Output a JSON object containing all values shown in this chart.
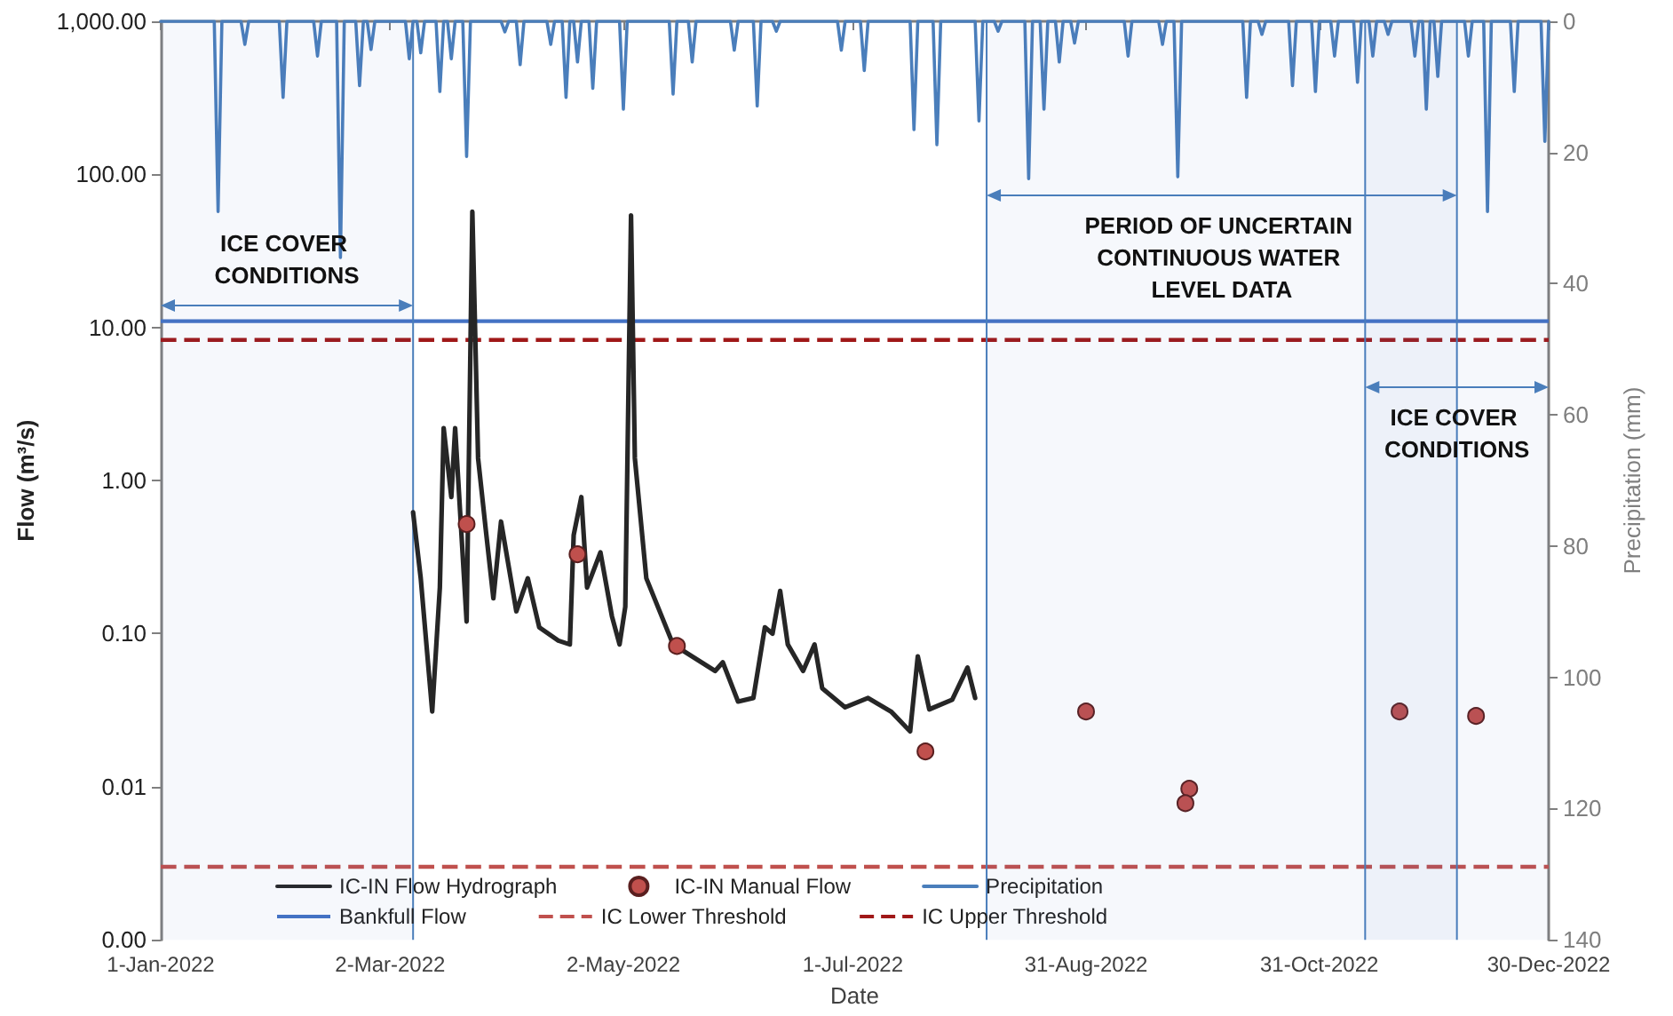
{
  "chart_data": {
    "type": "line",
    "xlabel": "Date",
    "ylabel": "Flow (m³/s)",
    "y2label": "Precipitation (mm)",
    "log": "y",
    "marker": "none",
    "legend": "bottom",
    "xlim": [
      "2022-01-01",
      "2022-12-30"
    ],
    "xticks": [
      {
        "value": "2022-01-01",
        "label": "1-Jan-2022"
      },
      {
        "value": "2022-03-02",
        "label": "2-Mar-2022"
      },
      {
        "value": "2022-05-02",
        "label": "2-May-2022"
      },
      {
        "value": "2022-07-01",
        "label": "1-Jul-2022"
      },
      {
        "value": "2022-08-31",
        "label": "31-Aug-2022"
      },
      {
        "value": "2022-10-31",
        "label": "31-Oct-2022"
      },
      {
        "value": "2022-12-30",
        "label": "30-Dec-2022"
      }
    ],
    "ylim": [
      0.001,
      1000
    ],
    "yticks": [
      {
        "value": 0.001,
        "label": "0.00"
      },
      {
        "value": 0.01,
        "label": "0.01"
      },
      {
        "value": 0.1,
        "label": "0.10"
      },
      {
        "value": 1,
        "label": "1.00"
      },
      {
        "value": 10,
        "label": "10.00"
      },
      {
        "value": 100,
        "label": "100.00"
      },
      {
        "value": 1000,
        "label": "1,000.00"
      }
    ],
    "y2lim": [
      140,
      0
    ],
    "y2ticks": [
      0,
      20,
      40,
      60,
      80,
      100,
      120,
      140
    ],
    "series": [
      {
        "name": "IC-IN Flow Hydrograph",
        "color": "#262626",
        "x": [
          "2022-03-08",
          "2022-03-10",
          "2022-03-13",
          "2022-03-15",
          "2022-03-16",
          "2022-03-18",
          "2022-03-19",
          "2022-03-22",
          "2022-03-23T12:00",
          "2022-03-25",
          "2022-03-27",
          "2022-03-29",
          "2022-03-31",
          "2022-04-04",
          "2022-04-07",
          "2022-04-10",
          "2022-04-15",
          "2022-04-18",
          "2022-04-19",
          "2022-04-21",
          "2022-04-22T12:00",
          "2022-04-26",
          "2022-04-29",
          "2022-05-01",
          "2022-05-02T12:00",
          "2022-05-04",
          "2022-05-05",
          "2022-05-08",
          "2022-05-15",
          "2022-05-26",
          "2022-05-28",
          "2022-06-01",
          "2022-06-05",
          "2022-06-08",
          "2022-06-10",
          "2022-06-12",
          "2022-06-14",
          "2022-06-18",
          "2022-06-21",
          "2022-06-23",
          "2022-06-29",
          "2022-07-05",
          "2022-07-11",
          "2022-07-16",
          "2022-07-18",
          "2022-07-21",
          "2022-07-27",
          "2022-07-31",
          "2022-08-02"
        ],
        "values": [
          0.62,
          0.23,
          0.031,
          0.2,
          2.2,
          0.78,
          2.2,
          0.12,
          57,
          1.4,
          0.48,
          0.17,
          0.54,
          0.14,
          0.23,
          0.11,
          0.09,
          0.085,
          0.44,
          0.78,
          0.2,
          0.34,
          0.13,
          0.085,
          0.15,
          54,
          1.4,
          0.23,
          0.085,
          0.057,
          0.065,
          0.036,
          0.038,
          0.11,
          0.1,
          0.19,
          0.085,
          0.057,
          0.085,
          0.044,
          0.033,
          0.038,
          0.031,
          0.023,
          0.071,
          0.032,
          0.037,
          0.06,
          0.038
        ]
      },
      {
        "name": "IC-IN Manual Flow",
        "type": "scatter",
        "marker": "circle",
        "color": "#c0504d",
        "x": [
          "2022-03-22",
          "2022-04-20",
          "2022-05-16",
          "2022-07-20",
          "2022-08-31",
          "2022-09-27",
          "2022-09-26",
          "2022-11-21",
          "2022-12-11"
        ],
        "values": [
          0.52,
          0.33,
          0.083,
          0.017,
          0.031,
          0.0097,
          0.0078,
          0.031,
          0.029
        ]
      },
      {
        "name": "Precipitation",
        "type": "line",
        "axis": "y2",
        "color": "#4a7ebb",
        "x": [
          "2022-01-01",
          "2022-01-15",
          "2022-01-16",
          "2022-01-17",
          "2022-01-22",
          "2022-01-23",
          "2022-01-24",
          "2022-02-01",
          "2022-02-02",
          "2022-02-03",
          "2022-02-10",
          "2022-02-11",
          "2022-02-12",
          "2022-02-16",
          "2022-02-17",
          "2022-02-18",
          "2022-02-21",
          "2022-02-22",
          "2022-02-23",
          "2022-02-24",
          "2022-02-25",
          "2022-02-26",
          "2022-03-06",
          "2022-03-07",
          "2022-03-08",
          "2022-03-09",
          "2022-03-10",
          "2022-03-11",
          "2022-03-14",
          "2022-03-15",
          "2022-03-16",
          "2022-03-17",
          "2022-03-18",
          "2022-03-19",
          "2022-03-21",
          "2022-03-22",
          "2022-03-23",
          "2022-03-31",
          "2022-04-01",
          "2022-04-02",
          "2022-04-04",
          "2022-04-05",
          "2022-04-06",
          "2022-04-12",
          "2022-04-13",
          "2022-04-14",
          "2022-04-16",
          "2022-04-17",
          "2022-04-18",
          "2022-04-19",
          "2022-04-20",
          "2022-04-21",
          "2022-04-23",
          "2022-04-24",
          "2022-04-25",
          "2022-05-01",
          "2022-05-02",
          "2022-05-03",
          "2022-05-14",
          "2022-05-15",
          "2022-05-16",
          "2022-05-19",
          "2022-05-20",
          "2022-05-21",
          "2022-05-30",
          "2022-05-31",
          "2022-06-01",
          "2022-06-05",
          "2022-06-06",
          "2022-06-07",
          "2022-06-10",
          "2022-06-11",
          "2022-06-12",
          "2022-06-27",
          "2022-06-28",
          "2022-06-29",
          "2022-07-03",
          "2022-07-04",
          "2022-07-05",
          "2022-07-16",
          "2022-07-17",
          "2022-07-18",
          "2022-07-22",
          "2022-07-23",
          "2022-07-24",
          "2022-08-02",
          "2022-08-03",
          "2022-08-04",
          "2022-08-07",
          "2022-08-08",
          "2022-08-09",
          "2022-08-15",
          "2022-08-16",
          "2022-08-17",
          "2022-08-19",
          "2022-08-20",
          "2022-08-21",
          "2022-08-23",
          "2022-08-24",
          "2022-08-25",
          "2022-08-27",
          "2022-08-28",
          "2022-08-29",
          "2022-09-10",
          "2022-09-11",
          "2022-09-12",
          "2022-09-19",
          "2022-09-20",
          "2022-09-21",
          "2022-09-23",
          "2022-09-24",
          "2022-09-25",
          "2022-10-11",
          "2022-10-12",
          "2022-10-13",
          "2022-10-15",
          "2022-10-16",
          "2022-10-17",
          "2022-10-23",
          "2022-10-24",
          "2022-10-25",
          "2022-10-29",
          "2022-10-30",
          "2022-10-31",
          "2022-11-03",
          "2022-11-04",
          "2022-11-05",
          "2022-11-09",
          "2022-11-10",
          "2022-11-11",
          "2022-11-13",
          "2022-11-14",
          "2022-11-15",
          "2022-11-17",
          "2022-11-18",
          "2022-11-19",
          "2022-11-24",
          "2022-11-25",
          "2022-11-26",
          "2022-11-27",
          "2022-11-28",
          "2022-11-29",
          "2022-11-30",
          "2022-12-01",
          "2022-12-02",
          "2022-12-08",
          "2022-12-09",
          "2022-12-10",
          "2022-12-13",
          "2022-12-14",
          "2022-12-15",
          "2022-12-20",
          "2022-12-21",
          "2022-12-22",
          "2022-12-28",
          "2022-12-29",
          "2022-12-30"
        ],
        "values": [
          0,
          0,
          29,
          0,
          0,
          3.5,
          0,
          0,
          11.6,
          0,
          0,
          5.3,
          0,
          0,
          36,
          0,
          0,
          9.8,
          0,
          0,
          4.3,
          0,
          0,
          5.7,
          0,
          0,
          4.8,
          0,
          0,
          10.7,
          0,
          0,
          5.7,
          0,
          0,
          20.6,
          0,
          0,
          1.6,
          0,
          0,
          6.6,
          0,
          0,
          3.5,
          0,
          0,
          11.6,
          0,
          0,
          6.2,
          0,
          0,
          10.2,
          0,
          0,
          13.4,
          0,
          0,
          11.1,
          0,
          0,
          6.2,
          0,
          0,
          4.4,
          0,
          0,
          12.9,
          0,
          0,
          1.5,
          0,
          0,
          4.4,
          0,
          0,
          7.5,
          0,
          0,
          16.5,
          0,
          0,
          18.8,
          0,
          0,
          15.2,
          0,
          0,
          1.5,
          0,
          0,
          24,
          0,
          0,
          13.4,
          0,
          0,
          6.2,
          0,
          0,
          3.3,
          0,
          0,
          5.3,
          0,
          0,
          3.5,
          0,
          0,
          23.7,
          0,
          0,
          11.6,
          0,
          0,
          2,
          0,
          0,
          9.8,
          0,
          0,
          10.7,
          0,
          0,
          5.3,
          0,
          0,
          9.3,
          0,
          0,
          5.3,
          0,
          0,
          2,
          0,
          0,
          5.3,
          0,
          0,
          13.4,
          0,
          0,
          8.4,
          0,
          0,
          5.3,
          0,
          0,
          29,
          0,
          0,
          10.7,
          0,
          0,
          18.3,
          0
        ]
      }
    ],
    "ref_lines": [
      {
        "axis": "y",
        "value": 11,
        "label": "Bankfull Flow",
        "color": "#4472c4",
        "line_style": "solid"
      },
      {
        "axis": "y",
        "value": 0.003,
        "label": "IC Lower Threshold",
        "color": "#c0504d",
        "line_style": "dashed"
      },
      {
        "axis": "y",
        "value": 8.3,
        "label": "IC Upper Threshold",
        "color": "#a01818",
        "line_style": "dashed"
      },
      {
        "axis": "x",
        "value": "2022-03-08",
        "color": "#4a7ebb",
        "line_style": "solid"
      },
      {
        "axis": "x",
        "value": "2022-08-05",
        "color": "#4a7ebb",
        "line_style": "solid"
      },
      {
        "axis": "x",
        "value": "2022-11-12",
        "color": "#4a7ebb",
        "line_style": "solid"
      },
      {
        "axis": "x",
        "value": "2022-12-06",
        "color": "#4a7ebb",
        "line_style": "solid"
      }
    ],
    "bands": [
      {
        "axis": "x",
        "from": "2022-01-01",
        "to": "2022-03-08",
        "label": "ICE COVER CONDITIONS",
        "color": "#4a7ebb"
      },
      {
        "axis": "x",
        "from": "2022-08-05",
        "to": "2022-12-06",
        "label": "PERIOD OF UNCERTAIN CONTINUOUS WATER LEVEL DATA",
        "color": "#4a7ebb"
      },
      {
        "axis": "x",
        "from": "2022-11-12",
        "to": "2022-12-30",
        "label": "ICE COVER CONDITIONS",
        "color": "#4a7ebb"
      }
    ]
  }
}
